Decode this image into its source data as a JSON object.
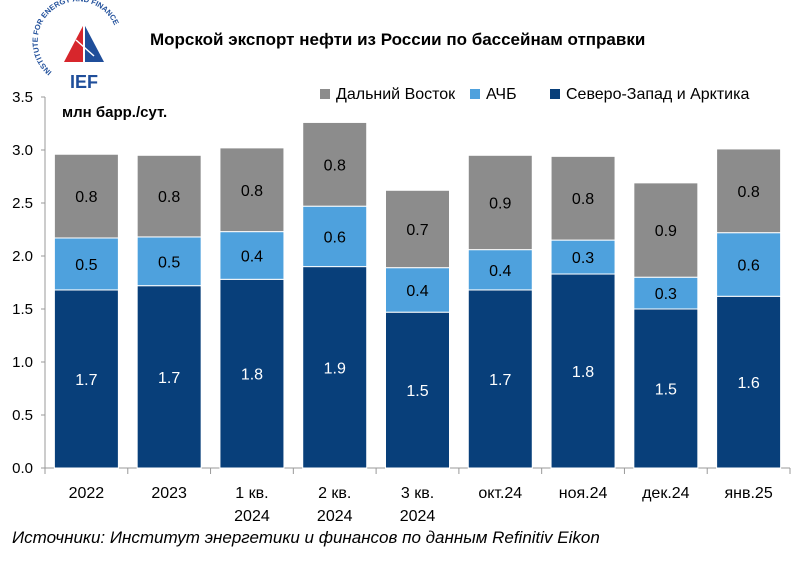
{
  "logo": {
    "arc_text": "INSTITUTE FOR ENERGY AND FINANCE",
    "abbr": "IEF",
    "colors": {
      "red": "#d7262c",
      "blue": "#1f4e9a"
    }
  },
  "title": "Морской экспорт нефти из России по бассейнам отправки",
  "source": "Источники: Институт энергетики и финансов по данным Refinitiv Eikon",
  "chart_data": {
    "type": "bar",
    "stacked": true,
    "unit_label": "млн барр./сут.",
    "categories": [
      [
        "2022"
      ],
      [
        "2023"
      ],
      [
        "1 кв.",
        "2024"
      ],
      [
        "2 кв.",
        "2024"
      ],
      [
        "3 кв.",
        "2024"
      ],
      [
        "окт.24"
      ],
      [
        "ноя.24"
      ],
      [
        "дек.24"
      ],
      [
        "янв.25"
      ]
    ],
    "series": [
      {
        "name": "Северо-Запад и Арктика",
        "color": "#083f7a",
        "label_color": "#ffffff",
        "values": [
          1.68,
          1.72,
          1.78,
          1.9,
          1.47,
          1.68,
          1.83,
          1.5,
          1.62
        ],
        "labels": [
          "1.7",
          "1.7",
          "1.8",
          "1.9",
          "1.5",
          "1.7",
          "1.8",
          "1.5",
          "1.6"
        ]
      },
      {
        "name": "АЧБ",
        "color": "#4ea1dd",
        "label_color": "#000000",
        "values": [
          0.49,
          0.46,
          0.45,
          0.57,
          0.42,
          0.38,
          0.32,
          0.3,
          0.6
        ],
        "labels": [
          "0.5",
          "0.5",
          "0.4",
          "0.6",
          "0.4",
          "0.4",
          "0.3",
          "0.3",
          "0.6"
        ]
      },
      {
        "name": "Дальний Восток",
        "color": "#8c8c8c",
        "label_color": "#000000",
        "values": [
          0.79,
          0.77,
          0.79,
          0.79,
          0.73,
          0.89,
          0.79,
          0.89,
          0.79
        ],
        "labels": [
          "0.8",
          "0.8",
          "0.8",
          "0.8",
          "0.7",
          "0.9",
          "0.8",
          "0.9",
          "0.8"
        ]
      }
    ],
    "legend_order": [
      "Дальний Восток",
      "АЧБ",
      "Северо-Запад и Арктика"
    ],
    "legend_position": "top-right",
    "ylim": [
      0,
      3.5
    ],
    "yticks": [
      "0.0",
      "0.5",
      "1.0",
      "1.5",
      "2.0",
      "2.5",
      "3.0",
      "3.5"
    ],
    "grid": false
  }
}
